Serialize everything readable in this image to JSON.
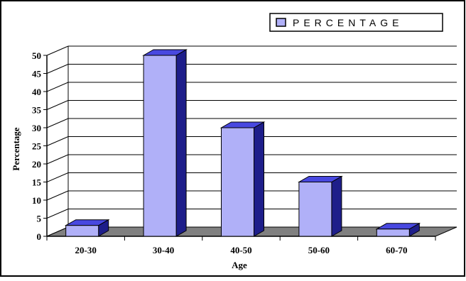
{
  "chart_data": {
    "type": "bar",
    "categories": [
      "20-30",
      "30-40",
      "40-50",
      "50-60",
      "60-70"
    ],
    "series": [
      {
        "name": "PERCENTAGE",
        "values": [
          3,
          50,
          30,
          15,
          2
        ],
        "color": "#b0b0f8",
        "side_color": "#1e1e8a",
        "top_color": "#4848e0"
      }
    ],
    "xlabel": "Age",
    "ylabel": "Percentage",
    "ylim": [
      0,
      50
    ],
    "yticks": [
      0,
      5,
      10,
      15,
      20,
      25,
      30,
      35,
      40,
      45,
      50
    ],
    "grid": true,
    "legend": "top-right",
    "floor_color": "#808080"
  }
}
